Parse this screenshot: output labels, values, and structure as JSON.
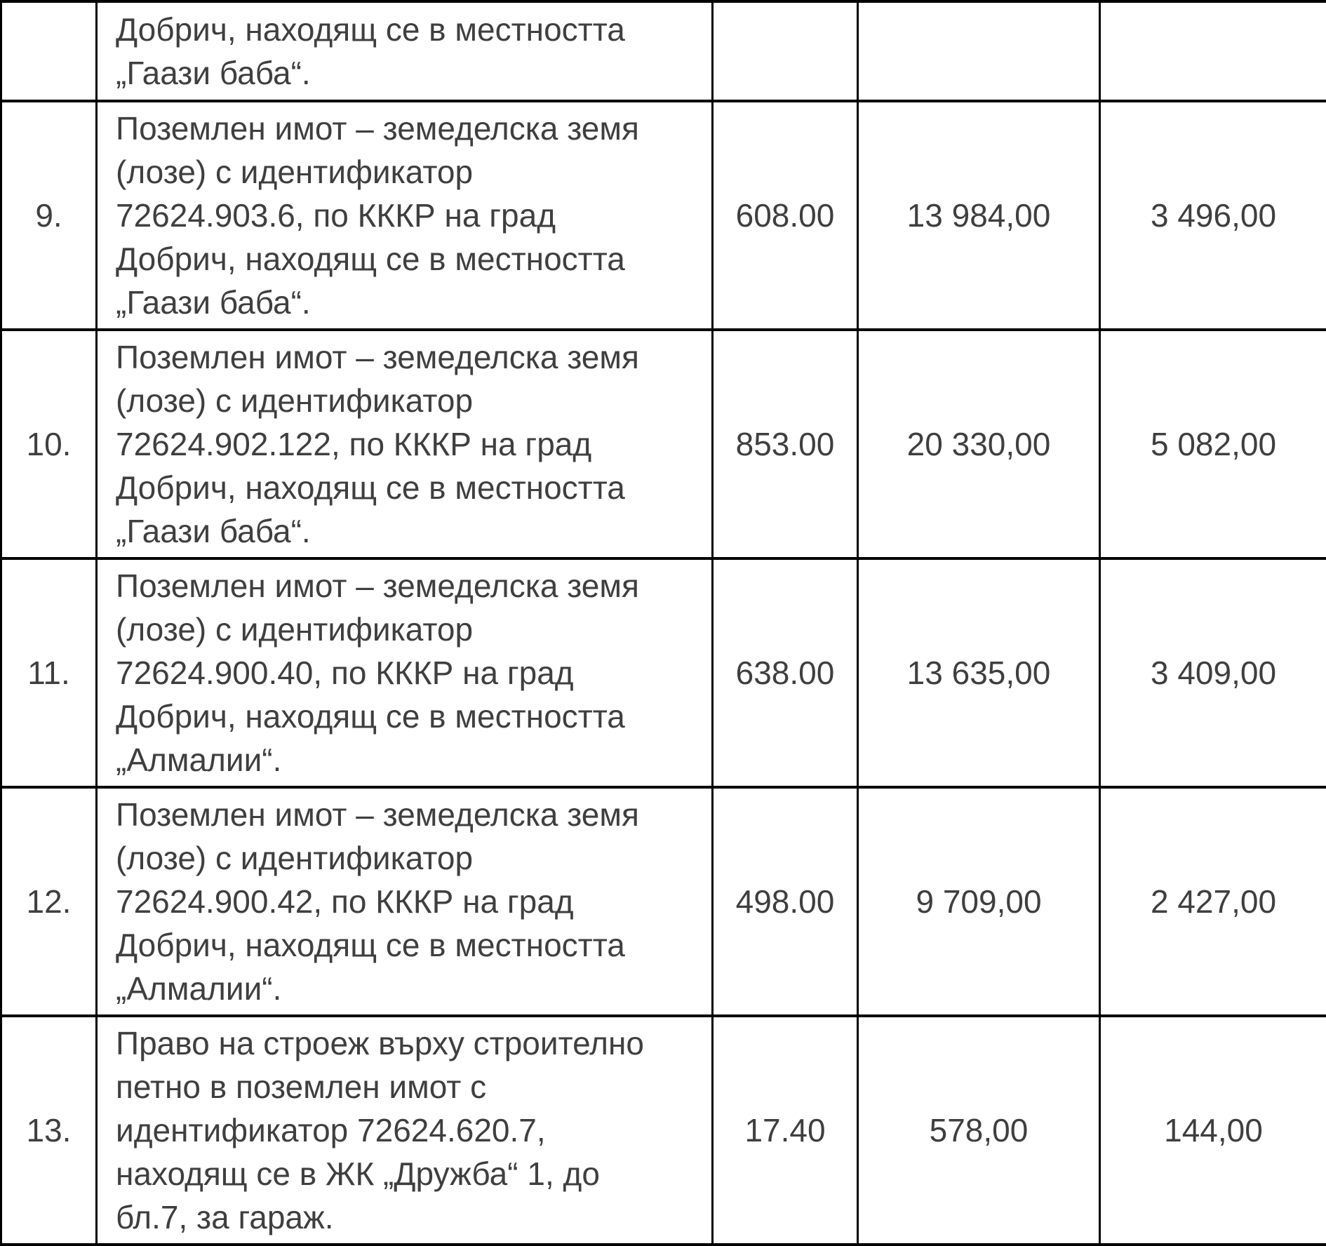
{
  "table": {
    "rows": [
      {
        "num": "",
        "description": "Добрич, находящ се в местността\n„Гаази баба“.",
        "area": "",
        "value1": "",
        "value2": ""
      },
      {
        "num": "9.",
        "description": "Поземлен имот – земеделска земя\n(лозе) с идентификатор\n72624.903.6, по КККР на град\nДобрич, находящ се в местността\n„Гаази баба“.",
        "area": "608.00",
        "value1": "13 984,00",
        "value2": "3 496,00"
      },
      {
        "num": "10.",
        "description": "Поземлен имот – земеделска земя\n(лозе) с идентификатор\n72624.902.122, по КККР на град\nДобрич, находящ се в местността\n„Гаази баба“.",
        "area": "853.00",
        "value1": "20 330,00",
        "value2": "5 082,00"
      },
      {
        "num": "11.",
        "description": "Поземлен имот – земеделска земя\n(лозе) с идентификатор\n72624.900.40, по КККР на град\nДобрич, находящ се в местността\n„Алмалии“.",
        "area": "638.00",
        "value1": "13 635,00",
        "value2": "3 409,00"
      },
      {
        "num": "12.",
        "description": "Поземлен имот – земеделска земя\n(лозе) с идентификатор\n72624.900.42, по КККР на град\nДобрич, находящ се в местността\n„Алмалии“.",
        "area": "498.00",
        "value1": "9 709,00",
        "value2": "2 427,00"
      },
      {
        "num": "13.",
        "description": "Право на строеж върху строително\nпетно в поземлен имот с\nидентификатор 72624.620.7,\nнаходящ се в ЖК „Дружба“ 1, до\nбл.7, за гараж.",
        "area": "17.40",
        "value1": "578,00",
        "value2": "144,00"
      }
    ]
  }
}
